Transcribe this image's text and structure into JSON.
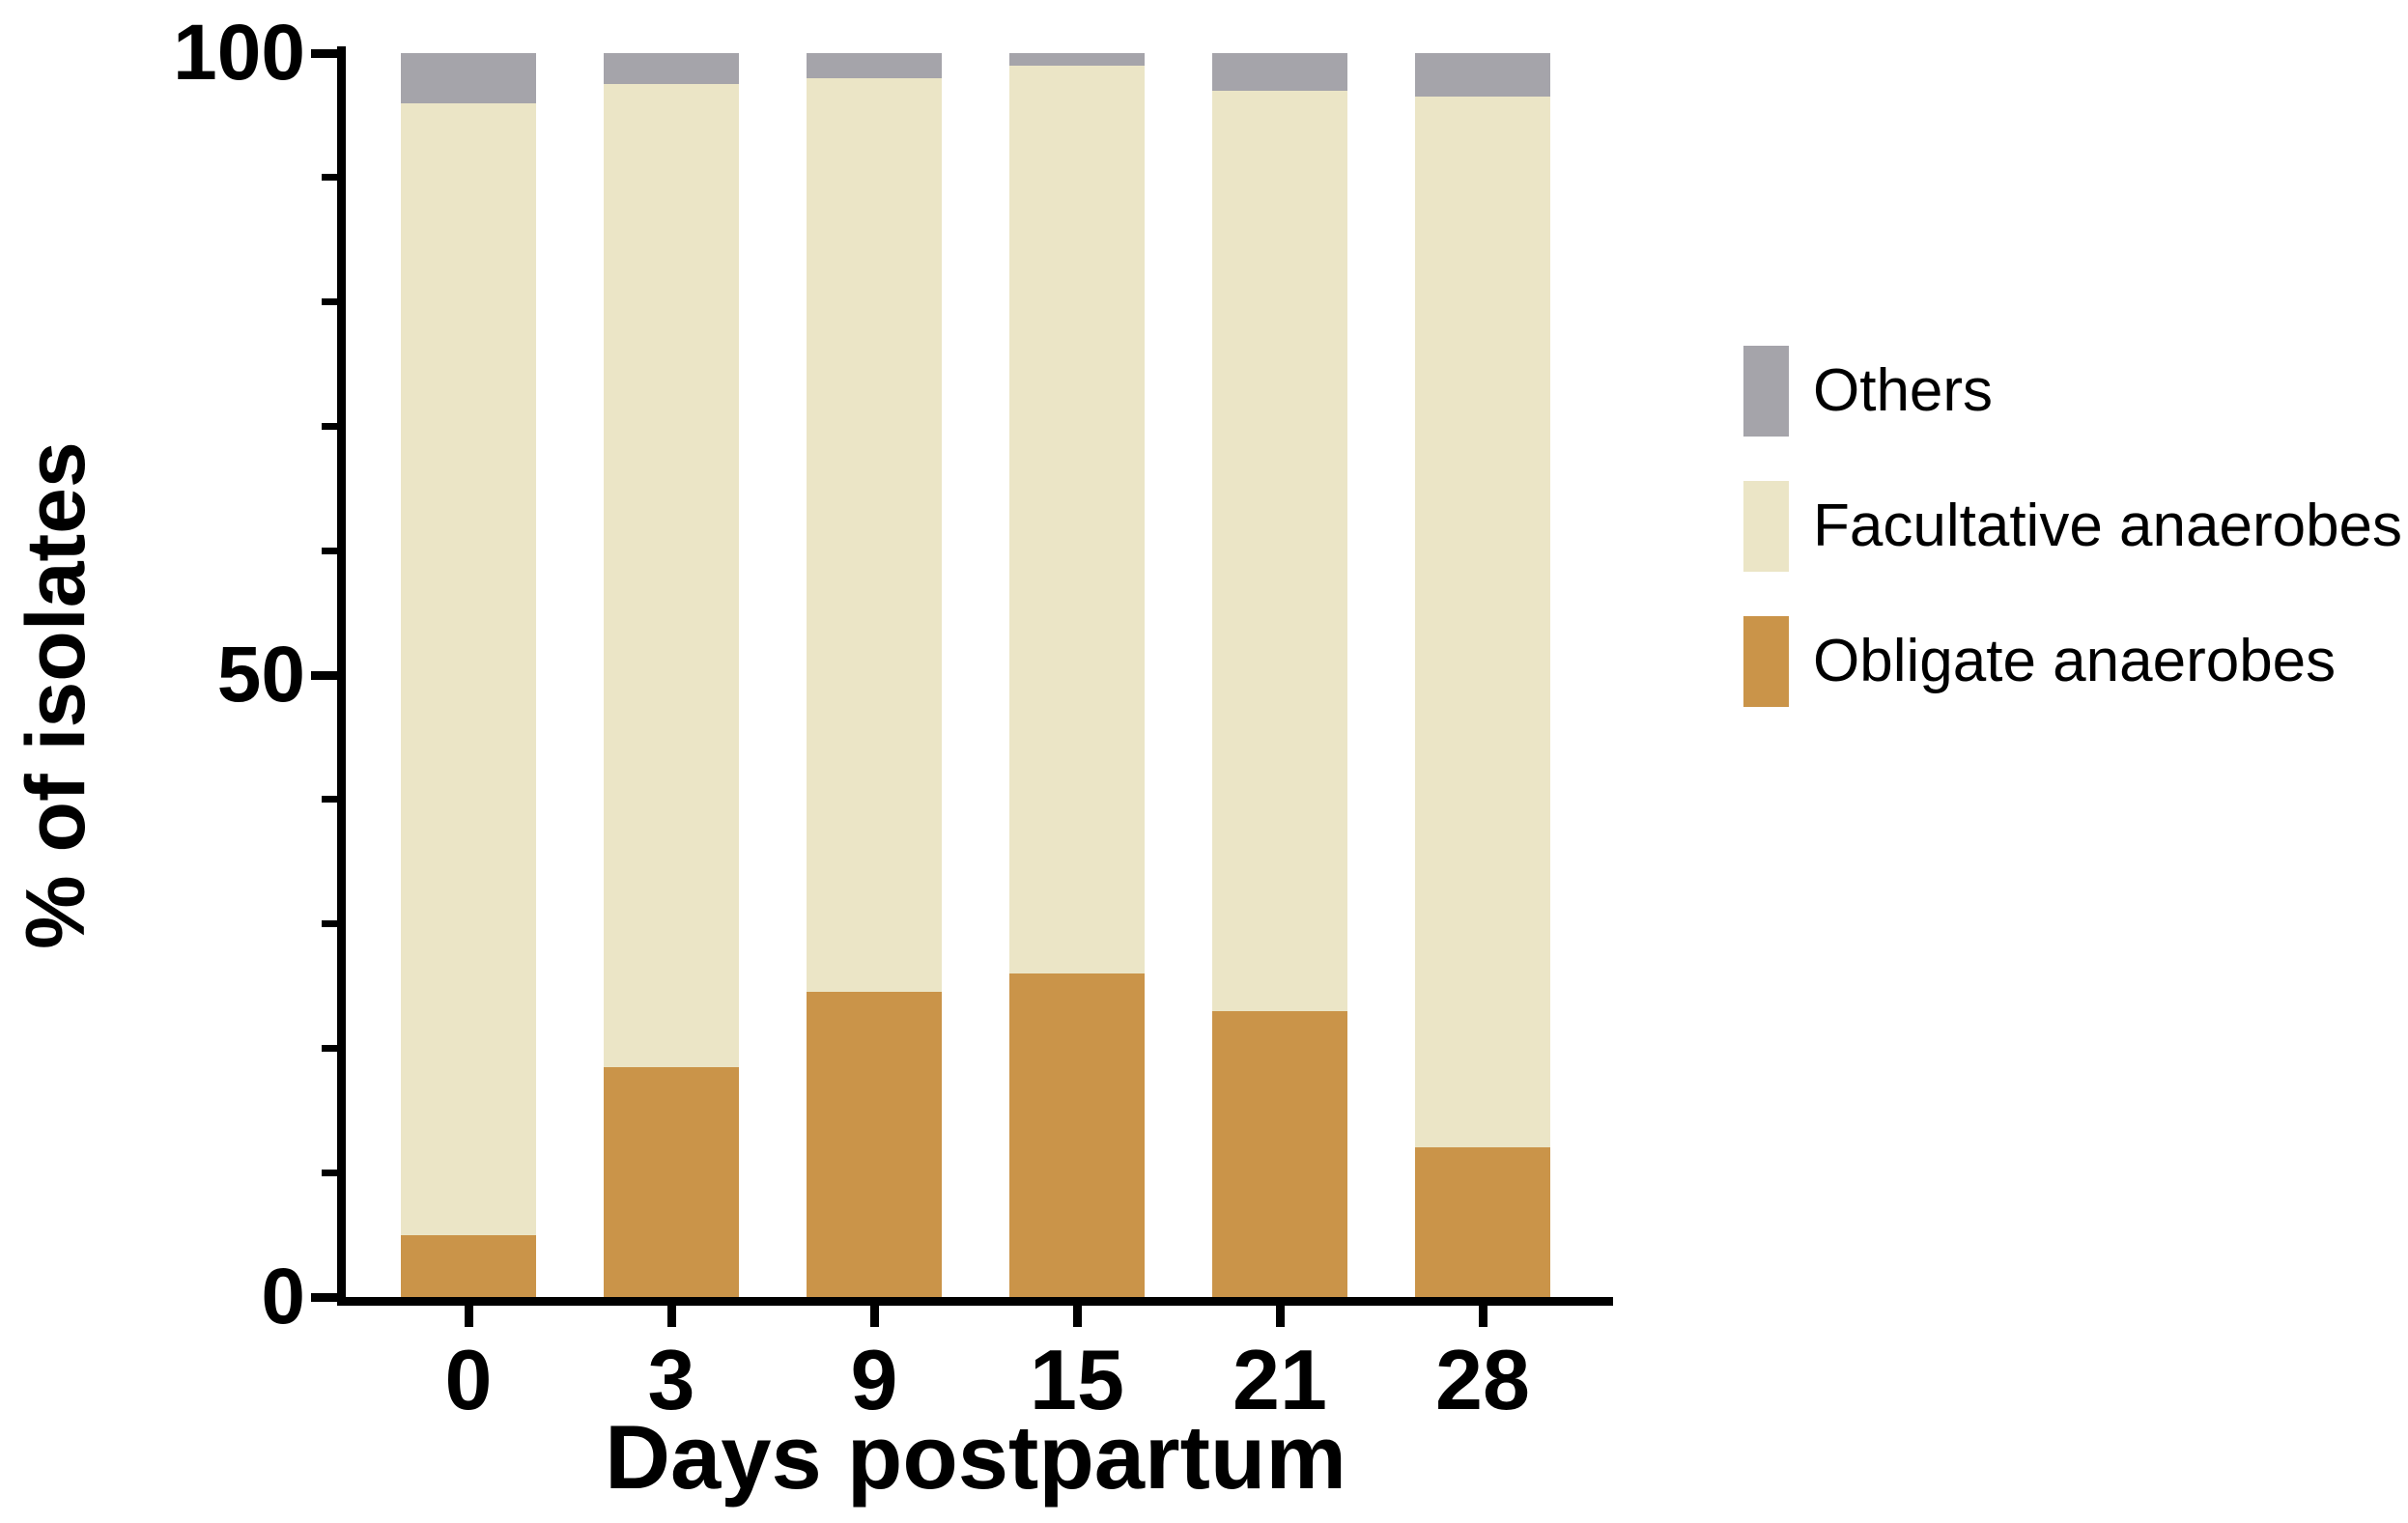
{
  "figure": {
    "background_color": "#ffffff",
    "text_color": "#000000",
    "axis_color": "#000000"
  },
  "chart_data": {
    "type": "bar",
    "stacked": true,
    "title": "",
    "xlabel": "Days postpartum",
    "ylabel": "% of isolates",
    "categories": [
      "0",
      "3",
      "9",
      "15",
      "21",
      "28"
    ],
    "series": [
      {
        "name": "Obligate anaerobes",
        "color": "#ca9449",
        "values": [
          5,
          18.5,
          24.5,
          26,
          23,
          12
        ]
      },
      {
        "name": "Facultative anaerobes",
        "color": "#ebe5c6",
        "values": [
          91,
          79,
          73.5,
          73,
          74,
          84.5
        ]
      },
      {
        "name": "Others",
        "color": "#a5a4aa",
        "values": [
          4,
          2.5,
          2,
          1,
          3,
          3.5
        ]
      }
    ],
    "ylim": [
      0,
      100
    ],
    "y_major_ticks": [
      0,
      50,
      100
    ],
    "y_minor_tick_step": 10,
    "grid": false,
    "legend_position": "right"
  },
  "legend": {
    "items": [
      {
        "label": "Others",
        "color": "#a5a4aa"
      },
      {
        "label": "Facultative anaerobes",
        "color": "#ebe5c6"
      },
      {
        "label": "Obligate anaerobes",
        "color": "#ca9449"
      }
    ]
  }
}
